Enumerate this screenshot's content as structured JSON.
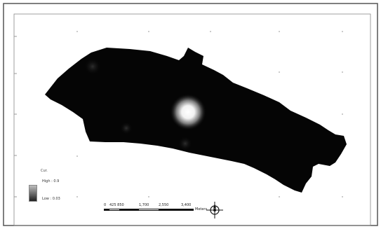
{
  "legend": {
    "title": "Cur.",
    "high_label": "High : 0.9",
    "low_label": "Low : 0.03",
    "ramp_high_color": "#bdbdbd",
    "ramp_low_color": "#202020"
  },
  "scale_bar": {
    "labels": [
      "0",
      "425 850",
      "1,700",
      "2,550",
      "3,400"
    ],
    "unit": "Meters"
  },
  "colors": {
    "region_fill": "#050505",
    "hotspot": "#ffffff",
    "frame": "#555555",
    "background": "#ffffff"
  },
  "icons": {
    "north_arrow": "north-arrow-icon"
  }
}
